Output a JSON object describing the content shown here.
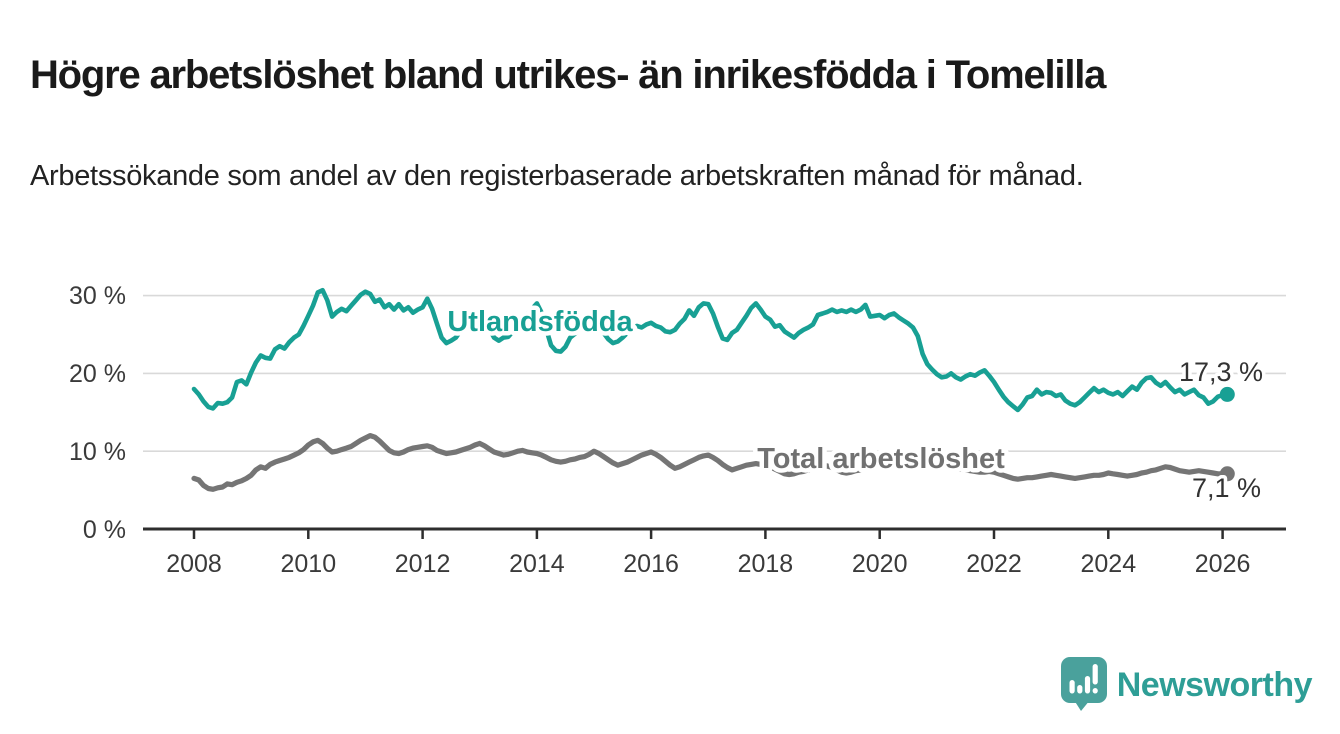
{
  "header": {
    "title": "Högre arbetslöshet bland utrikes- än inrikesfödda i Tomelilla",
    "subtitle": "Arbetssökande som andel av den registerbaserade arbetskraften månad för månad."
  },
  "footer": {
    "brand": "Newsworthy"
  },
  "chart_data": {
    "type": "line",
    "title": "Högre arbetslöshet bland utrikes- än inrikesfödda i Tomelilla",
    "subtitle": "Arbetssökande som andel av den registerbaserade arbetskraften månad för månad.",
    "unit": "%",
    "frequency": "monthly",
    "x_start": "2008-01",
    "x_end": "2026-02",
    "ylim": [
      0,
      32
    ],
    "grid": "horizontal",
    "legend_position": "inline-labels",
    "y_tick_labels": [
      "0 %",
      "10 %",
      "20 %",
      "30 %"
    ],
    "x_tick_labels": [
      "2008",
      "2010",
      "2012",
      "2014",
      "2016",
      "2018",
      "2020",
      "2022",
      "2024",
      "2026"
    ],
    "series": [
      {
        "name": "Utlandsfödda",
        "color": "#18A094",
        "end_label": "17,3 %",
        "last_value": 17.3,
        "values": [
          18.0,
          17.3,
          16.4,
          15.7,
          15.5,
          16.2,
          16.1,
          16.3,
          16.9,
          18.9,
          19.1,
          18.6,
          20.1,
          21.4,
          22.3,
          22.0,
          21.9,
          23.1,
          23.5,
          23.2,
          24.0,
          24.6,
          25.0,
          26.1,
          27.4,
          28.7,
          30.4,
          30.7,
          29.4,
          27.3,
          27.9,
          28.3,
          28.0,
          28.7,
          29.4,
          30.1,
          30.5,
          30.2,
          29.2,
          29.5,
          28.5,
          28.9,
          28.2,
          28.9,
          28.1,
          28.5,
          27.8,
          28.2,
          28.5,
          29.6,
          28.3,
          26.4,
          24.6,
          23.9,
          24.2,
          24.6,
          25.5,
          26.4,
          27.2,
          27.0,
          27.4,
          26.9,
          25.8,
          24.6,
          24.2,
          24.6,
          24.7,
          25.4,
          26.0,
          26.8,
          27.6,
          28.3,
          29.0,
          27.8,
          25.6,
          23.6,
          22.9,
          22.8,
          23.4,
          24.6,
          25.1,
          25.6,
          26.0,
          26.2,
          26.4,
          26.0,
          25.2,
          24.4,
          23.9,
          24.1,
          24.6,
          25.2,
          25.8,
          26.1,
          25.9,
          26.3,
          26.5,
          26.1,
          25.9,
          25.4,
          25.3,
          25.6,
          26.4,
          27.0,
          28.1,
          27.4,
          28.5,
          29.0,
          28.9,
          27.7,
          26.0,
          24.5,
          24.3,
          25.2,
          25.6,
          26.5,
          27.4,
          28.4,
          29.0,
          28.2,
          27.3,
          26.9,
          26.0,
          26.2,
          25.4,
          25.0,
          24.6,
          25.2,
          25.6,
          25.9,
          26.3,
          27.5,
          27.7,
          27.9,
          28.2,
          27.9,
          28.1,
          27.9,
          28.2,
          27.9,
          28.2,
          28.8,
          27.3,
          27.4,
          27.5,
          27.1,
          27.5,
          27.7,
          27.2,
          26.8,
          26.4,
          25.9,
          24.8,
          22.5,
          21.2,
          20.5,
          19.9,
          19.5,
          19.6,
          20.0,
          19.5,
          19.2,
          19.6,
          19.9,
          19.7,
          20.1,
          20.4,
          19.7,
          18.9,
          17.9,
          17.0,
          16.3,
          15.8,
          15.3,
          16.0,
          16.9,
          17.1,
          17.9,
          17.3,
          17.6,
          17.5,
          17.1,
          17.3,
          16.5,
          16.1,
          15.9,
          16.3,
          16.9,
          17.5,
          18.1,
          17.6,
          17.9,
          17.5,
          17.3,
          17.6,
          17.1,
          17.7,
          18.3,
          17.9,
          18.8,
          19.4,
          19.5,
          18.8,
          18.4,
          18.9,
          18.2,
          17.6,
          17.9,
          17.3,
          17.6,
          17.9,
          17.2,
          16.9,
          16.1,
          16.4,
          17.0,
          17.2,
          17.3
        ]
      },
      {
        "name": "Total arbetslöshet",
        "color": "#757575",
        "end_label": "7,1 %",
        "last_value": 7.1,
        "values": [
          6.5,
          6.3,
          5.6,
          5.2,
          5.1,
          5.3,
          5.4,
          5.8,
          5.7,
          6.0,
          6.2,
          6.5,
          6.9,
          7.6,
          8.0,
          7.8,
          8.3,
          8.6,
          8.8,
          9.0,
          9.2,
          9.5,
          9.8,
          10.2,
          10.8,
          11.2,
          11.4,
          11.0,
          10.4,
          9.9,
          10.0,
          10.2,
          10.4,
          10.6,
          11.0,
          11.4,
          11.7,
          12.0,
          11.8,
          11.3,
          10.7,
          10.1,
          9.8,
          9.7,
          9.9,
          10.2,
          10.4,
          10.5,
          10.6,
          10.7,
          10.5,
          10.1,
          9.9,
          9.7,
          9.8,
          9.9,
          10.1,
          10.3,
          10.5,
          10.8,
          11.0,
          10.7,
          10.3,
          9.9,
          9.7,
          9.5,
          9.6,
          9.8,
          10.0,
          10.1,
          9.9,
          9.8,
          9.7,
          9.5,
          9.2,
          8.9,
          8.7,
          8.6,
          8.7,
          8.9,
          9.0,
          9.2,
          9.3,
          9.6,
          10.0,
          9.7,
          9.3,
          8.9,
          8.5,
          8.2,
          8.4,
          8.6,
          8.9,
          9.2,
          9.5,
          9.7,
          9.9,
          9.6,
          9.2,
          8.7,
          8.2,
          7.8,
          8.0,
          8.3,
          8.6,
          8.9,
          9.2,
          9.4,
          9.5,
          9.2,
          8.8,
          8.3,
          7.9,
          7.6,
          7.8,
          8.0,
          8.2,
          8.3,
          8.4,
          8.3,
          8.2,
          8.0,
          7.7,
          7.4,
          7.1,
          7.0,
          7.1,
          7.3,
          7.4,
          7.6,
          7.8,
          8.0,
          8.2,
          8.1,
          7.9,
          7.6,
          7.3,
          7.2,
          7.3,
          7.5,
          7.6,
          7.8,
          7.9,
          8.1,
          8.3,
          8.4,
          8.6,
          8.9,
          9.1,
          9.2,
          9.1,
          9.0,
          8.8,
          8.6,
          8.5,
          8.6,
          8.7,
          8.6,
          8.4,
          8.2,
          7.9,
          7.7,
          7.6,
          7.5,
          7.4,
          7.3,
          7.3,
          7.4,
          7.3,
          7.1,
          6.9,
          6.7,
          6.5,
          6.4,
          6.5,
          6.6,
          6.6,
          6.7,
          6.8,
          6.9,
          7.0,
          6.9,
          6.8,
          6.7,
          6.6,
          6.5,
          6.6,
          6.7,
          6.8,
          6.9,
          6.9,
          7.0,
          7.2,
          7.1,
          7.0,
          6.9,
          6.8,
          6.9,
          7.0,
          7.2,
          7.3,
          7.5,
          7.6,
          7.8,
          8.0,
          7.9,
          7.7,
          7.5,
          7.4,
          7.3,
          7.4,
          7.5,
          7.4,
          7.3,
          7.2,
          7.1,
          7.1,
          7.1
        ]
      }
    ],
    "branding": "Newsworthy"
  }
}
